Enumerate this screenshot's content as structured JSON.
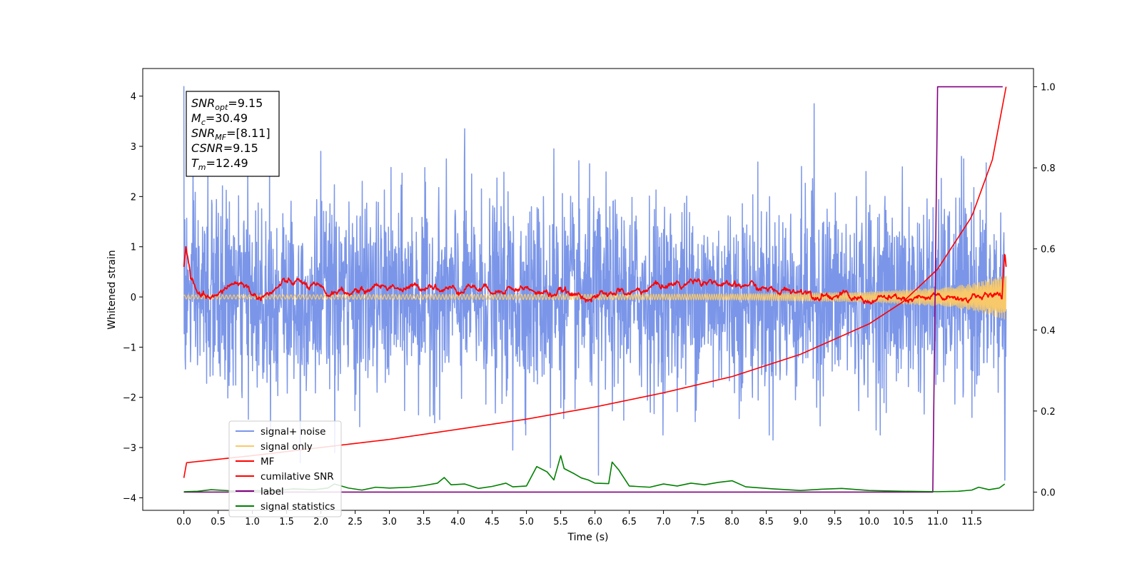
{
  "chart_data": {
    "type": "line",
    "xlabel": "Time (s)",
    "ylabel": "Whitened strain",
    "xlim": [
      -0.6,
      12.4
    ],
    "ylim": [
      -4.25,
      4.55
    ],
    "y2lim": [
      -0.045,
      1.045
    ],
    "xticks": [
      0.0,
      0.5,
      1.0,
      1.5,
      2.0,
      2.5,
      3.0,
      3.5,
      4.0,
      4.5,
      5.0,
      5.5,
      6.0,
      6.5,
      7.0,
      7.5,
      8.0,
      8.5,
      9.0,
      9.5,
      10.0,
      10.5,
      11.0,
      11.5
    ],
    "xtick_labels": [
      "0.0",
      "0.5",
      "1.0",
      "1.5",
      "2.0",
      "2.5",
      "3.0",
      "3.5",
      "4.0",
      "4.5",
      "5.0",
      "5.5",
      "6.0",
      "6.5",
      "7.0",
      "7.5",
      "8.0",
      "8.5",
      "9.0",
      "9.5",
      "10.0",
      "10.5",
      "11.0",
      "11.5"
    ],
    "yticks": [
      -4,
      -3,
      -2,
      -1,
      0,
      1,
      2,
      3,
      4
    ],
    "ytick_labels": [
      "−4",
      "−3",
      "−2",
      "−1",
      "0",
      "1",
      "2",
      "3",
      "4"
    ],
    "y2ticks": [
      0.0,
      0.2,
      0.4,
      0.6,
      0.8,
      1.0
    ],
    "y2tick_labels": [
      "0.0",
      "0.2",
      "0.4",
      "0.6",
      "0.8",
      "1.0"
    ],
    "grid": false,
    "legend_position": "lower-left",
    "annotation": {
      "lines": [
        {
          "base": "SNR",
          "sub": "opt",
          "value": "=9.15"
        },
        {
          "base": "M",
          "sub": "c",
          "value": "=30.49"
        },
        {
          "base": "SNR",
          "sub": "MF",
          "value": "=[8.11]"
        },
        {
          "base": "CSNR",
          "sub": "",
          "value": "=9.15"
        },
        {
          "base": "T",
          "sub": "m",
          "value": "=12.49"
        }
      ]
    },
    "series": [
      {
        "name": "signal+ noise",
        "color": "#7b96e8",
        "axis": "left",
        "style": "noise",
        "t_start": 0.0,
        "t_end": 12.0,
        "amplitude_std": 0.95,
        "peaks": [
          [
            0.0,
            4.2
          ],
          [
            0.35,
            2.6
          ],
          [
            1.25,
            2.8
          ],
          [
            2.0,
            2.9
          ],
          [
            4.1,
            3.35
          ],
          [
            5.4,
            2.95
          ],
          [
            9.2,
            3.85
          ],
          [
            11.35,
            2.8
          ],
          [
            11.98,
            2.15
          ]
        ],
        "troughs": [
          [
            1.7,
            -3.3
          ],
          [
            2.2,
            -3.1
          ],
          [
            4.8,
            -3.05
          ],
          [
            5.35,
            -3.4
          ],
          [
            6.05,
            -3.55
          ],
          [
            8.6,
            -2.85
          ],
          [
            11.98,
            -3.65
          ]
        ]
      },
      {
        "name": "signal only",
        "color": "#f8c96a",
        "axis": "left",
        "style": "chirp",
        "t_start": 0.0,
        "t_end": 12.0,
        "envelope": [
          [
            0.0,
            0.04
          ],
          [
            8.0,
            0.06
          ],
          [
            10.0,
            0.1
          ],
          [
            11.0,
            0.18
          ],
          [
            11.5,
            0.26
          ],
          [
            12.0,
            0.45
          ]
        ]
      },
      {
        "name": "MF",
        "color": "#ff0000",
        "axis": "left",
        "style": "mf",
        "t_start": 0.0,
        "t_end": 12.0,
        "points": [
          [
            0.0,
            0.6
          ],
          [
            0.03,
            1.0
          ],
          [
            0.1,
            0.35
          ],
          [
            0.2,
            0.05
          ],
          [
            0.35,
            -0.05
          ],
          [
            0.75,
            0.3
          ],
          [
            1.1,
            0.0
          ],
          [
            1.55,
            0.3
          ],
          [
            1.9,
            0.25
          ],
          [
            2.1,
            0.05
          ],
          [
            2.9,
            0.2
          ],
          [
            4.9,
            0.15
          ],
          [
            6.0,
            0.0
          ],
          [
            7.45,
            0.32
          ],
          [
            10.0,
            -0.05
          ],
          [
            11.8,
            0.0
          ],
          [
            11.94,
            0.05
          ],
          [
            11.98,
            0.9
          ],
          [
            12.0,
            0.6
          ]
        ]
      },
      {
        "name": "cumilative SNR",
        "color": "#ff0000",
        "axis": "right",
        "style": "curve",
        "points": [
          [
            0.0,
            0.035
          ],
          [
            0.01,
            0.072
          ],
          [
            1.0,
            0.09
          ],
          [
            2.0,
            0.11
          ],
          [
            3.0,
            0.13
          ],
          [
            4.0,
            0.155
          ],
          [
            5.0,
            0.18
          ],
          [
            6.0,
            0.21
          ],
          [
            7.0,
            0.245
          ],
          [
            8.0,
            0.285
          ],
          [
            9.0,
            0.34
          ],
          [
            10.0,
            0.415
          ],
          [
            10.5,
            0.47
          ],
          [
            11.0,
            0.55
          ],
          [
            11.5,
            0.68
          ],
          [
            11.8,
            0.82
          ],
          [
            12.0,
            1.0
          ]
        ]
      },
      {
        "name": "label",
        "color": "#800080",
        "axis": "right",
        "style": "line",
        "points": [
          [
            0.0,
            0.0
          ],
          [
            10.93,
            0.0
          ],
          [
            11.0,
            1.0
          ],
          [
            11.95,
            1.0
          ]
        ]
      },
      {
        "name": "signal statistics",
        "color": "#008000",
        "axis": "right",
        "style": "line",
        "points": [
          [
            0.0,
            0.001
          ],
          [
            0.2,
            0.002
          ],
          [
            0.4,
            0.006
          ],
          [
            0.7,
            0.003
          ],
          [
            1.0,
            0.004
          ],
          [
            1.3,
            0.003
          ],
          [
            1.6,
            0.008
          ],
          [
            1.9,
            0.006
          ],
          [
            2.1,
            0.01
          ],
          [
            2.2,
            0.02
          ],
          [
            2.4,
            0.01
          ],
          [
            2.6,
            0.005
          ],
          [
            2.8,
            0.012
          ],
          [
            3.0,
            0.01
          ],
          [
            3.3,
            0.012
          ],
          [
            3.5,
            0.016
          ],
          [
            3.7,
            0.022
          ],
          [
            3.8,
            0.036
          ],
          [
            3.9,
            0.018
          ],
          [
            4.1,
            0.02
          ],
          [
            4.3,
            0.009
          ],
          [
            4.5,
            0.014
          ],
          [
            4.7,
            0.022
          ],
          [
            4.8,
            0.013
          ],
          [
            5.0,
            0.015
          ],
          [
            5.15,
            0.063
          ],
          [
            5.3,
            0.05
          ],
          [
            5.4,
            0.03
          ],
          [
            5.5,
            0.09
          ],
          [
            5.55,
            0.058
          ],
          [
            5.7,
            0.045
          ],
          [
            5.8,
            0.035
          ],
          [
            5.9,
            0.03
          ],
          [
            6.0,
            0.022
          ],
          [
            6.2,
            0.021
          ],
          [
            6.25,
            0.074
          ],
          [
            6.35,
            0.054
          ],
          [
            6.5,
            0.015
          ],
          [
            6.8,
            0.012
          ],
          [
            7.0,
            0.02
          ],
          [
            7.2,
            0.015
          ],
          [
            7.4,
            0.022
          ],
          [
            7.6,
            0.018
          ],
          [
            7.8,
            0.024
          ],
          [
            8.0,
            0.028
          ],
          [
            8.2,
            0.013
          ],
          [
            8.6,
            0.008
          ],
          [
            9.0,
            0.004
          ],
          [
            9.3,
            0.007
          ],
          [
            9.6,
            0.009
          ],
          [
            10.0,
            0.004
          ],
          [
            10.5,
            0.002
          ],
          [
            11.0,
            0.001
          ],
          [
            11.3,
            0.002
          ],
          [
            11.5,
            0.005
          ],
          [
            11.6,
            0.012
          ],
          [
            11.75,
            0.006
          ],
          [
            11.9,
            0.01
          ],
          [
            11.98,
            0.02
          ]
        ]
      }
    ]
  }
}
